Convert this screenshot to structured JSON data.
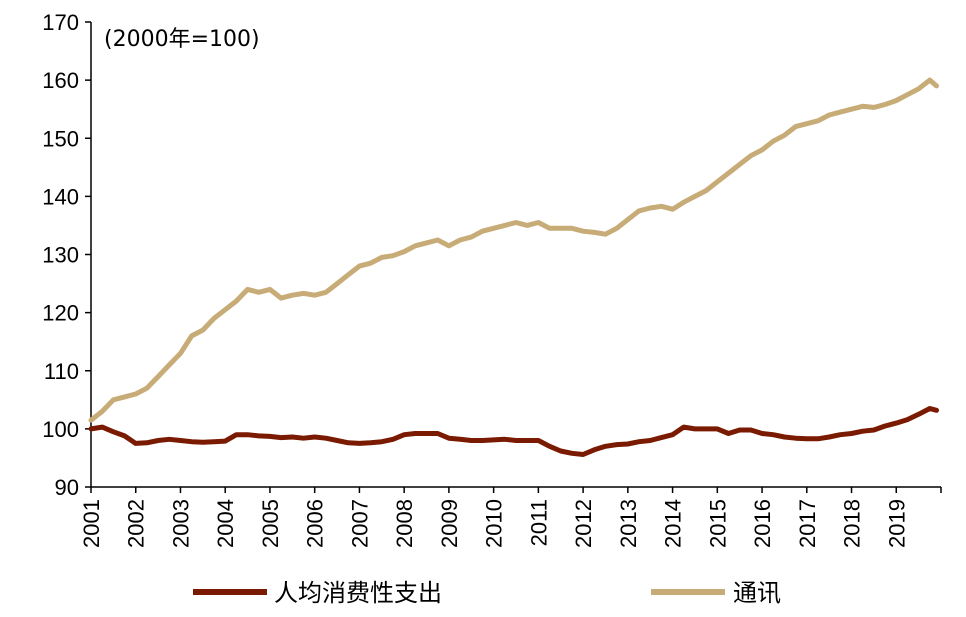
{
  "chart_data": {
    "type": "line",
    "title": "",
    "note": "(2000年=100)",
    "xlabel": "",
    "ylabel": "",
    "ylim": [
      90,
      170
    ],
    "yticks": [
      90,
      100,
      110,
      120,
      130,
      140,
      150,
      160,
      170
    ],
    "xticks": [
      "2001",
      "2002",
      "2003",
      "2004",
      "2005",
      "2006",
      "2007",
      "2008",
      "2009",
      "2010",
      "2011",
      "2012",
      "2013",
      "2014",
      "2015",
      "2016",
      "2017",
      "2018",
      "2019"
    ],
    "x_start": 2001,
    "x_end": 2020,
    "grid": false,
    "legend_position": "bottom",
    "series": [
      {
        "name": "人均消费性支出",
        "color": "#7a1a00",
        "x": [
          2001.0,
          2001.25,
          2001.5,
          2001.75,
          2002.0,
          2002.25,
          2002.5,
          2002.75,
          2003.0,
          2003.25,
          2003.5,
          2003.75,
          2004.0,
          2004.25,
          2004.5,
          2004.75,
          2005.0,
          2005.25,
          2005.5,
          2005.75,
          2006.0,
          2006.25,
          2006.5,
          2006.75,
          2007.0,
          2007.25,
          2007.5,
          2007.75,
          2008.0,
          2008.25,
          2008.5,
          2008.75,
          2009.0,
          2009.25,
          2009.5,
          2009.75,
          2010.0,
          2010.25,
          2010.5,
          2010.75,
          2011.0,
          2011.25,
          2011.5,
          2011.75,
          2012.0,
          2012.25,
          2012.5,
          2012.75,
          2013.0,
          2013.25,
          2013.5,
          2013.75,
          2014.0,
          2014.25,
          2014.5,
          2014.75,
          2015.0,
          2015.25,
          2015.5,
          2015.75,
          2016.0,
          2016.25,
          2016.5,
          2016.75,
          2017.0,
          2017.25,
          2017.5,
          2017.75,
          2018.0,
          2018.25,
          2018.5,
          2018.75,
          2019.0,
          2019.25,
          2019.5,
          2019.75,
          2019.9
        ],
        "values": [
          100.0,
          100.3,
          99.5,
          98.8,
          97.5,
          97.6,
          98.0,
          98.2,
          98.0,
          97.8,
          97.7,
          97.8,
          97.9,
          99.0,
          99.0,
          98.8,
          98.7,
          98.5,
          98.6,
          98.4,
          98.6,
          98.4,
          98.0,
          97.6,
          97.5,
          97.6,
          97.8,
          98.2,
          99.0,
          99.2,
          99.2,
          99.2,
          98.4,
          98.2,
          98.0,
          98.0,
          98.1,
          98.2,
          98.0,
          98.0,
          98.0,
          97.0,
          96.2,
          95.8,
          95.6,
          96.4,
          97.0,
          97.3,
          97.4,
          97.8,
          98.0,
          98.5,
          99.0,
          100.3,
          100.0,
          100.0,
          100.0,
          99.2,
          99.8,
          99.8,
          99.2,
          99.0,
          98.6,
          98.4,
          98.3,
          98.3,
          98.6,
          99.0,
          99.2,
          99.6,
          99.8,
          100.5,
          101.0,
          101.6,
          102.5,
          103.5,
          103.2
        ]
      },
      {
        "name": "通讯",
        "color": "#c8ac78",
        "x": [
          2001.0,
          2001.25,
          2001.5,
          2001.75,
          2002.0,
          2002.25,
          2002.5,
          2002.75,
          2003.0,
          2003.25,
          2003.5,
          2003.75,
          2004.0,
          2004.25,
          2004.5,
          2004.75,
          2005.0,
          2005.25,
          2005.5,
          2005.75,
          2006.0,
          2006.25,
          2006.5,
          2006.75,
          2007.0,
          2007.25,
          2007.5,
          2007.75,
          2008.0,
          2008.25,
          2008.5,
          2008.75,
          2009.0,
          2009.25,
          2009.5,
          2009.75,
          2010.0,
          2010.25,
          2010.5,
          2010.75,
          2011.0,
          2011.25,
          2011.5,
          2011.75,
          2012.0,
          2012.25,
          2012.5,
          2012.75,
          2013.0,
          2013.25,
          2013.5,
          2013.75,
          2014.0,
          2014.25,
          2014.5,
          2014.75,
          2015.0,
          2015.25,
          2015.5,
          2015.75,
          2016.0,
          2016.25,
          2016.5,
          2016.75,
          2017.0,
          2017.25,
          2017.5,
          2017.75,
          2018.0,
          2018.25,
          2018.5,
          2018.75,
          2019.0,
          2019.25,
          2019.5,
          2019.75,
          2019.9
        ],
        "values": [
          101.5,
          103.0,
          105.0,
          105.5,
          106.0,
          107.0,
          109.0,
          111.0,
          113.0,
          116.0,
          117.0,
          119.0,
          120.5,
          122.0,
          124.0,
          123.5,
          124.0,
          122.5,
          123.0,
          123.3,
          123.0,
          123.5,
          125.0,
          126.5,
          128.0,
          128.5,
          129.5,
          129.8,
          130.5,
          131.5,
          132.0,
          132.5,
          131.5,
          132.5,
          133.0,
          134.0,
          134.5,
          135.0,
          135.5,
          135.0,
          135.5,
          134.5,
          134.5,
          134.5,
          134.0,
          133.8,
          133.5,
          134.5,
          136.0,
          137.5,
          138.0,
          138.3,
          137.8,
          139.0,
          140.0,
          141.0,
          142.5,
          144.0,
          145.5,
          147.0,
          148.0,
          149.5,
          150.5,
          152.0,
          152.5,
          153.0,
          154.0,
          154.5,
          155.0,
          155.5,
          155.3,
          155.8,
          156.5,
          157.5,
          158.5,
          160.0,
          159.0
        ]
      }
    ]
  }
}
